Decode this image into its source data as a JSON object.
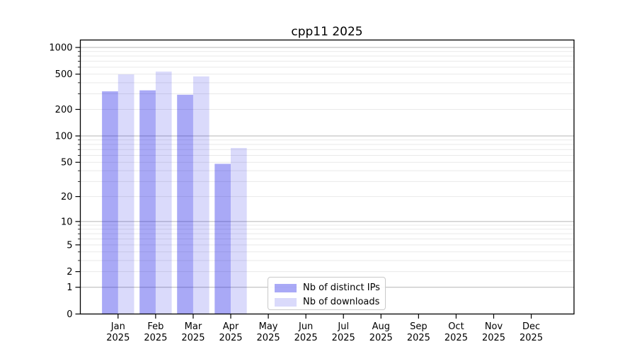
{
  "chart_data": {
    "type": "bar",
    "title": "cpp11 2025",
    "categories": [
      "Jan 2025",
      "Feb 2025",
      "Mar 2025",
      "Apr 2025",
      "May 2025",
      "Jun 2025",
      "Jul 2025",
      "Aug 2025",
      "Sep 2025",
      "Oct 2025",
      "Nov 2025",
      "Dec 2025"
    ],
    "series": [
      {
        "name": "Nb of distinct IPs",
        "color_hex": "#a9a9f6",
        "fill": "rgba(10,10,230,0.35)",
        "values": [
          320,
          328,
          293,
          48,
          null,
          null,
          null,
          null,
          null,
          null,
          null,
          null
        ]
      },
      {
        "name": "Nb of downloads",
        "color_hex": "#dadafb",
        "fill": "rgba(10,10,230,0.15)",
        "values": [
          497,
          535,
          472,
          73,
          null,
          null,
          null,
          null,
          null,
          null,
          null,
          null
        ]
      }
    ],
    "xlabel": "",
    "ylabel": "",
    "y_axis": {
      "scale": "log1p",
      "tick_values": [
        0,
        1,
        2,
        5,
        10,
        20,
        50,
        100,
        200,
        500,
        1000
      ],
      "tick_labels": [
        "0",
        "1",
        "2",
        "5",
        "10",
        "20",
        "50",
        "100",
        "200",
        "500",
        "1000"
      ],
      "ylim": [
        0,
        1213
      ]
    },
    "grid": "on",
    "legend_position": "lower center",
    "colors": {
      "major_gridline": "#b6b6b6",
      "minor_gridline": "#e9e9e9",
      "spine": "#000000",
      "text": "#000000",
      "background": "#ffffff"
    }
  }
}
